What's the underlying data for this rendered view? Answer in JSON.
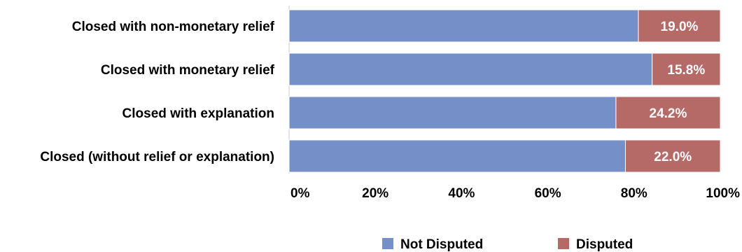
{
  "chart_data": {
    "type": "bar",
    "orientation": "horizontal",
    "stacked": true,
    "percent_stacked": true,
    "categories": [
      "Closed with non-monetary relief",
      "Closed with monetary relief",
      "Closed with explanation",
      "Closed (without relief or explanation)"
    ],
    "series": [
      {
        "name": "Not Disputed",
        "color": "#7590c8",
        "values": [
          81.0,
          84.2,
          75.8,
          78.0
        ]
      },
      {
        "name": "Disputed",
        "color": "#b56a68",
        "values": [
          19.0,
          15.8,
          24.2,
          22.0
        ]
      }
    ],
    "data_labels": [
      "19.0%",
      "15.8%",
      "24.2%",
      "22.0%"
    ],
    "xlim": [
      0,
      100
    ],
    "x_ticks": [
      "0%",
      "20%",
      "40%",
      "60%",
      "80%",
      "100%"
    ],
    "grid": false,
    "legend_position": "bottom"
  }
}
